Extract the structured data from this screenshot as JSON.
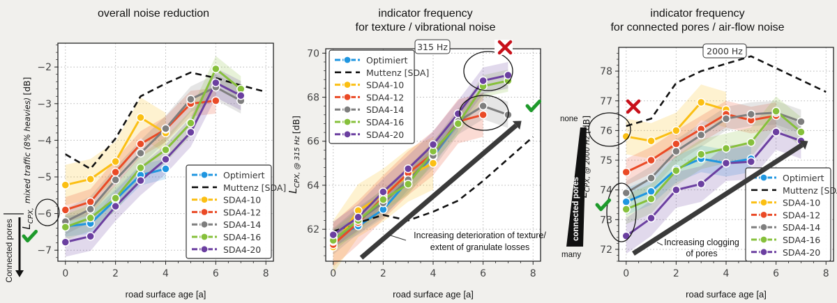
{
  "colors": {
    "Optimiert": "#1f96e0",
    "Muttenz (SDA)": "#111111",
    "SDA4-10": "#fbbf13",
    "SDA4-12": "#ea4a26",
    "SDA4-14": "#7e7e7e",
    "SDA4-16": "#86c03b",
    "SDA4-20": "#6b3fa0",
    "check": "#1e9a2b",
    "cross": "#c8101a",
    "arrow": "#3a3a3a"
  },
  "chart_data": [
    {
      "type": "line",
      "title": "overall noise reduction",
      "xlabel": "road surface age [a]",
      "ylabel_main": "L",
      "ylabel_sub": "CPX,",
      "ylabel_italic": "mixed traffic (8% heavies)",
      "ylabel_unit": "[dB]",
      "xlim": [
        -0.3,
        8.3
      ],
      "ylim": [
        -7.3,
        -1.35
      ],
      "xticks": [
        0,
        2,
        4,
        6,
        8
      ],
      "xtick_labels": [
        "0",
        "2",
        "4",
        "6",
        "8"
      ],
      "yticks": [
        -7,
        -6,
        -5,
        -4,
        -3,
        -2
      ],
      "ytick_labels": [
        "−7",
        "−6",
        "−5",
        "−4",
        "−3",
        "−2"
      ],
      "grid": true,
      "legend_position": "lower-right",
      "legend": [
        "Optimiert",
        "Muttenz [SDA]",
        "SDA4-10",
        "SDA4-12",
        "SDA4-14",
        "SDA4-16",
        "SDA4-20"
      ],
      "series": [
        {
          "name": "Optimiert",
          "x": [
            0,
            1,
            2,
            3,
            4
          ],
          "y": [
            -6.35,
            -6.27,
            -5.62,
            -4.95,
            -4.78
          ],
          "band": 0.28
        },
        {
          "name": "Muttenz (SDA)",
          "x": [
            0,
            1,
            2,
            3,
            4,
            5,
            6,
            7,
            8
          ],
          "y": [
            -4.38,
            -4.78,
            -3.95,
            -2.8,
            -2.45,
            -2.15,
            -2.3,
            -2.5,
            -2.68
          ],
          "dashed": true
        },
        {
          "name": "SDA4-10",
          "x": [
            0,
            1,
            2,
            3,
            4
          ],
          "y": [
            -5.22,
            -5.06,
            -4.58,
            -3.38,
            -3.8
          ],
          "band": 0.55
        },
        {
          "name": "SDA4-12",
          "x": [
            0,
            1,
            2,
            3,
            4,
            5,
            6
          ],
          "y": [
            -5.9,
            -5.68,
            -4.87,
            -4.1,
            -3.7,
            -3.0,
            -2.92
          ],
          "band": 0.35
        },
        {
          "name": "SDA4-14",
          "x": [
            0,
            1,
            2,
            3,
            4,
            5,
            6,
            7
          ],
          "y": [
            -6.22,
            -5.88,
            -5.08,
            -4.35,
            -3.68,
            -2.88,
            -2.55,
            -2.92
          ],
          "band": 0.35
        },
        {
          "name": "SDA4-16",
          "x": [
            0,
            1,
            2,
            3,
            4,
            5,
            6,
            7
          ],
          "y": [
            -6.37,
            -6.12,
            -5.58,
            -4.75,
            -4.26,
            -3.53,
            -2.05,
            -2.6
          ],
          "band": 0.35
        },
        {
          "name": "SDA4-20",
          "x": [
            0,
            1,
            2,
            3,
            4,
            5,
            6,
            7
          ],
          "y": [
            -6.78,
            -6.62,
            -5.8,
            -5.1,
            -4.52,
            -3.78,
            -2.43,
            -2.78
          ],
          "band": 0.4
        }
      ],
      "annotations": {
        "side_label": "Connected pores",
        "circled_tick": "−6",
        "check": "✔"
      }
    },
    {
      "type": "line",
      "title": "indicator frequency\nfor texture / vibrational noise",
      "title_lines": [
        "indicator frequency",
        "for texture / vibrational noise"
      ],
      "frequency_label": "315 Hz",
      "xlabel": "road surface age [a]",
      "ylabel_main": "L",
      "ylabel_sub": "CPX, @ 315 Hz",
      "ylabel_unit": "[dB]",
      "xlim": [
        -0.3,
        8.3
      ],
      "ylim": [
        60.55,
        70.2
      ],
      "xticks": [
        0,
        2,
        4,
        6,
        8
      ],
      "xtick_labels": [
        "0",
        "2",
        "4",
        "6",
        "8"
      ],
      "yticks": [
        62,
        64,
        66,
        68,
        70
      ],
      "ytick_labels": [
        "62",
        "64",
        "66",
        "68",
        "70"
      ],
      "grid": true,
      "legend_position": "upper-left",
      "legend": [
        "Optimiert",
        "Muttenz [SDA]",
        "SDA4-10",
        "SDA4-12",
        "SDA4-14",
        "SDA4-16",
        "SDA4-20"
      ],
      "series": [
        {
          "name": "Optimiert",
          "x": [
            0,
            1,
            2,
            3,
            4,
            5
          ],
          "y": [
            61.6,
            62.15,
            62.9,
            64.2,
            65.3,
            66.85
          ],
          "band": 0.4
        },
        {
          "name": "Muttenz (SDA)",
          "x": [
            0,
            1,
            2,
            3,
            4,
            5,
            6,
            7,
            8
          ],
          "y": [
            61.9,
            62.3,
            62.65,
            62.4,
            62.8,
            63.3,
            64.2,
            65.2,
            66.2
          ],
          "dashed": true
        },
        {
          "name": "SDA4-10",
          "x": [
            0,
            1,
            2,
            3,
            4
          ],
          "y": [
            61.2,
            62.85,
            63.55,
            64.45,
            65.0
          ],
          "band": 1.2
        },
        {
          "name": "SDA4-12",
          "x": [
            0,
            1,
            2,
            3,
            4,
            5,
            6
          ],
          "y": [
            61.3,
            62.3,
            63.45,
            64.55,
            65.45,
            66.9,
            67.2
          ],
          "band": 1.0
        },
        {
          "name": "SDA4-14",
          "x": [
            0,
            1,
            2,
            3,
            4,
            5,
            6,
            7
          ],
          "y": [
            61.45,
            62.4,
            63.2,
            64.25,
            65.35,
            66.9,
            67.6,
            67.2
          ],
          "band": 0.6
        },
        {
          "name": "SDA4-16",
          "x": [
            0,
            1,
            2,
            3,
            4,
            5,
            6,
            7
          ],
          "y": [
            61.5,
            62.4,
            63.35,
            64.05,
            65.55,
            66.8,
            68.5,
            68.75
          ],
          "band": 0.5
        },
        {
          "name": "SDA4-20",
          "x": [
            0,
            1,
            2,
            3,
            4,
            5,
            6,
            7
          ],
          "y": [
            61.75,
            62.55,
            63.7,
            64.75,
            65.85,
            67.25,
            68.75,
            69.0
          ],
          "band": 0.6
        }
      ],
      "annotations": {
        "arrow_text_lines": [
          "Increasing deterioration of texture/",
          "extent of granulate losses"
        ],
        "cross": "✖",
        "check": "✔"
      }
    },
    {
      "type": "line",
      "title": "indicator frequency\nfor connected pores / air-flow noise",
      "title_lines": [
        "indicator frequency",
        "for connected pores / air-flow noise"
      ],
      "frequency_label": "2000 Hz",
      "xlabel": "road surface age [a]",
      "ylabel_main": "L",
      "ylabel_sub": "CPX, @ 2000 Hz",
      "ylabel_unit": "[dB]",
      "xlim": [
        -0.3,
        8.3
      ],
      "ylim": [
        71.6,
        78.8
      ],
      "xticks": [
        0,
        2,
        4,
        6,
        8
      ],
      "xtick_labels": [
        "0",
        "2",
        "4",
        "6",
        "8"
      ],
      "yticks": [
        72,
        73,
        74,
        75,
        76,
        77,
        78
      ],
      "ytick_labels": [
        "72",
        "73",
        "74",
        "75",
        "76",
        "77",
        "78"
      ],
      "grid": true,
      "legend_position": "lower-right",
      "legend": [
        "Optimiert",
        "Muttenz [SDA]",
        "SDA4-10",
        "SDA4-12",
        "SDA4-14",
        "SDA4-16",
        "SDA4-20"
      ],
      "series": [
        {
          "name": "Optimiert",
          "x": [
            0,
            1,
            2,
            3,
            4,
            5
          ],
          "y": [
            73.6,
            73.95,
            74.7,
            75.05,
            74.9,
            75.05
          ],
          "band": 0.45
        },
        {
          "name": "Muttenz (SDA)",
          "x": [
            0,
            1,
            2,
            3,
            4,
            5,
            6,
            7,
            8
          ],
          "y": [
            76.15,
            76.4,
            77.6,
            78.0,
            78.25,
            78.5,
            78.1,
            77.7,
            77.3
          ],
          "dashed": true
        },
        {
          "name": "SDA4-10",
          "x": [
            0,
            1,
            2,
            3,
            4
          ],
          "y": [
            75.8,
            75.65,
            76.0,
            76.95,
            76.7
          ],
          "band": 0.6
        },
        {
          "name": "SDA4-12",
          "x": [
            0,
            1,
            2,
            3,
            4,
            5,
            6
          ],
          "y": [
            74.6,
            75.0,
            75.55,
            76.05,
            76.55,
            76.35,
            76.5
          ],
          "band": 0.45
        },
        {
          "name": "SDA4-14",
          "x": [
            0,
            1,
            2,
            3,
            4,
            5,
            6,
            7
          ],
          "y": [
            73.9,
            74.4,
            75.3,
            75.85,
            76.4,
            76.55,
            76.6,
            76.3
          ],
          "band": 0.4
        },
        {
          "name": "SDA4-16",
          "x": [
            0,
            1,
            2,
            3,
            4,
            5,
            6,
            7
          ],
          "y": [
            73.35,
            73.7,
            74.65,
            75.2,
            75.4,
            75.6,
            76.65,
            75.95
          ],
          "band": 0.5
        },
        {
          "name": "SDA4-20",
          "x": [
            0,
            1,
            2,
            3,
            4,
            5,
            6,
            7
          ],
          "y": [
            72.45,
            73.05,
            74.0,
            74.2,
            74.9,
            74.95,
            75.95,
            75.65
          ],
          "band": 0.6
        }
      ],
      "annotations": {
        "arrow_text_lines": [
          "Increasing clogging",
          "of pores"
        ],
        "wedge_label": "connected pores",
        "wedge_top": "none",
        "wedge_bottom": "many",
        "cross": "✖",
        "check": "✔"
      }
    }
  ]
}
